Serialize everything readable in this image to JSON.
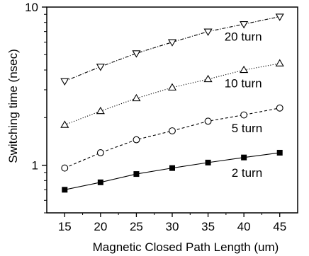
{
  "chart_data": {
    "type": "line",
    "xlabel": "Magnetic Closed Path Length (um)",
    "ylabel": "Switching time (nsec)",
    "x": [
      15,
      20,
      25,
      30,
      35,
      40,
      45
    ],
    "x_ticks": [
      "15",
      "20",
      "25",
      "30",
      "35",
      "40",
      "45"
    ],
    "xlim": [
      12.5,
      47.5
    ],
    "ylim": [
      0.5,
      10
    ],
    "y_scale": "log",
    "y_tick_labels": [
      {
        "value": 1,
        "label": "1"
      },
      {
        "value": 10,
        "label": "10"
      }
    ],
    "grid": false,
    "series": [
      {
        "name": "20 turn",
        "marker": "triangle-down-open",
        "line_style": "dash-dot",
        "values": [
          3.4,
          4.2,
          5.1,
          6.0,
          7.0,
          7.8,
          8.7
        ]
      },
      {
        "name": "10 turn",
        "marker": "triangle-up-open",
        "line_style": "dotted",
        "values": [
          1.8,
          2.2,
          2.65,
          3.1,
          3.5,
          4.0,
          4.4
        ]
      },
      {
        "name": "5 turn",
        "marker": "circle-open",
        "line_style": "dashed",
        "values": [
          0.96,
          1.2,
          1.45,
          1.65,
          1.9,
          2.08,
          2.3
        ]
      },
      {
        "name": "2 turn",
        "marker": "square-filled",
        "line_style": "solid",
        "values": [
          0.7,
          0.78,
          0.88,
          0.96,
          1.04,
          1.12,
          1.2
        ]
      }
    ]
  }
}
